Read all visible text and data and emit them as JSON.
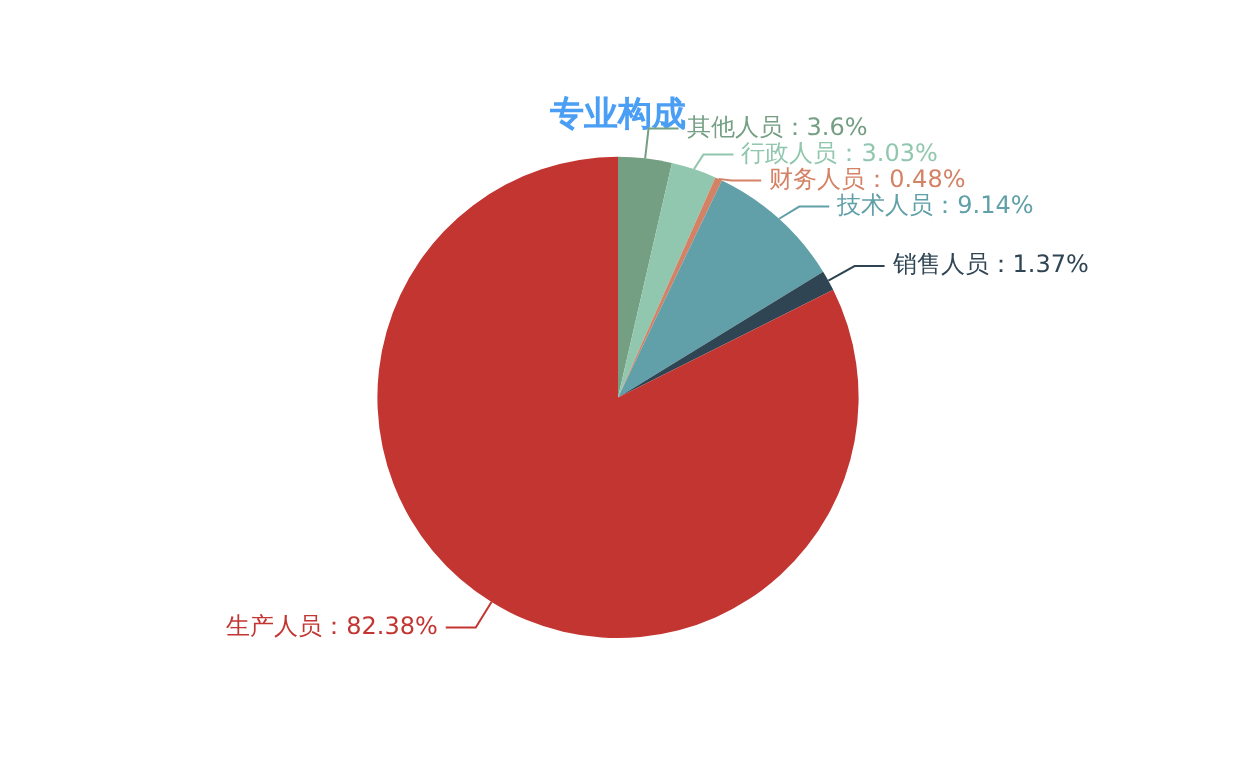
{
  "chart_data": {
    "type": "pie",
    "title": "专业构成",
    "categories": [
      "其他人员",
      "行政人员",
      "财务人员",
      "技术人员",
      "销售人员",
      "生产人员"
    ],
    "values": [
      3.6,
      3.03,
      0.48,
      9.14,
      1.37,
      82.38
    ],
    "value_labels": [
      "：3.6%",
      "：3.03%",
      "：0.48%",
      "：9.14%",
      "：1.37%",
      "：82.38%"
    ],
    "colors": [
      "#749f83",
      "#91c7ae",
      "#d48265",
      "#61a0a8",
      "#2f4554",
      "#c23531"
    ],
    "legend": false
  }
}
